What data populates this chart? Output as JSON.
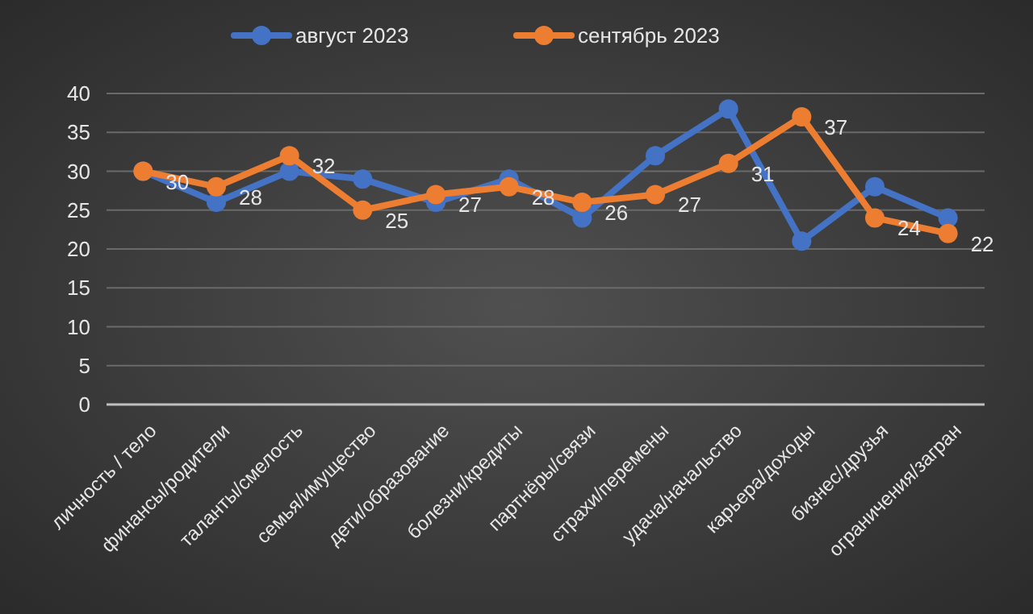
{
  "chart_data": {
    "type": "line",
    "categories": [
      "личность / тело",
      "финансы/родители",
      "таланты/смелость",
      "семья/имущество",
      "дети/образование",
      "болезни/кредиты",
      "партнёры/связи",
      "страхи/перемены",
      "удача/начальство",
      "карьера/доходы",
      "бизнес/друзья",
      "ограничения/загран"
    ],
    "series": [
      {
        "name": "август 2023",
        "color": "#4472c4",
        "values": [
          30,
          26,
          30,
          29,
          26,
          29,
          24,
          32,
          38,
          21,
          28,
          24
        ]
      },
      {
        "name": "сентябрь 2023",
        "color": "#ed7d31",
        "values": [
          30,
          28,
          32,
          25,
          27,
          28,
          26,
          27,
          31,
          37,
          24,
          22
        ],
        "value_labels": [
          "30",
          "28",
          "32",
          "25",
          "27",
          "28",
          "26",
          "27",
          "31",
          "37",
          "24",
          "22"
        ]
      }
    ],
    "ylim": [
      0,
      40
    ],
    "yticks": [
      0,
      5,
      10,
      15,
      20,
      25,
      30,
      35,
      40
    ],
    "grid": "y",
    "legend": "top",
    "marker": "circle",
    "line_style": "solid"
  }
}
